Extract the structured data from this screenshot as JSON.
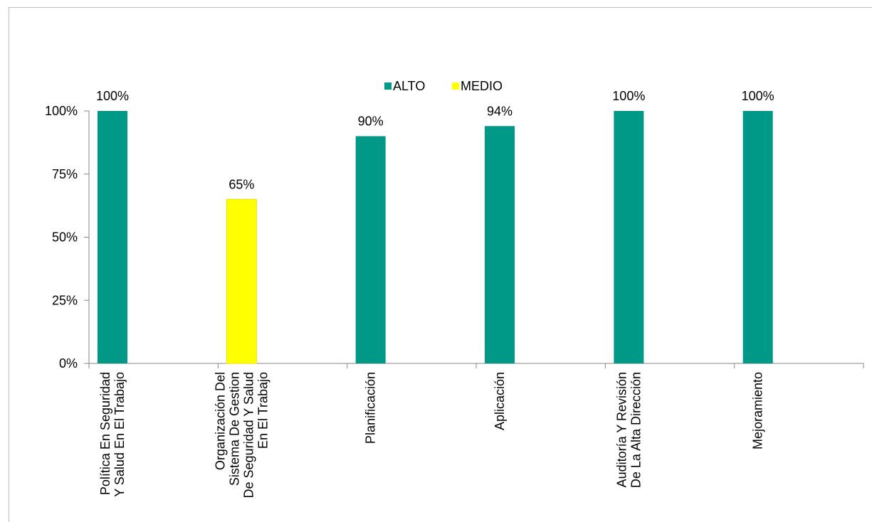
{
  "chart_data": {
    "type": "bar",
    "categories": [
      [
        "Política En Seguridad",
        "Y Salud En El Trabajo"
      ],
      [
        "Organización Del",
        "Sistema De Gestion",
        "De Seguridad Y Salud",
        "En El Trabajo"
      ],
      [
        "Planificación"
      ],
      [
        "Aplicación"
      ],
      [
        "Auditoría Y Revisión",
        "De La Alta Dirección"
      ],
      [
        "Mejoramiento"
      ]
    ],
    "values": [
      100,
      65,
      90,
      94,
      100,
      100
    ],
    "value_labels": [
      "100%",
      "65%",
      "90%",
      "94%",
      "100%",
      "100%"
    ],
    "series_of_point": [
      "ALTO",
      "MEDIO",
      "ALTO",
      "ALTO",
      "ALTO",
      "ALTO"
    ],
    "legend": [
      {
        "name": "ALTO",
        "color": "#009988"
      },
      {
        "name": "MEDIO",
        "color": "#ffff00"
      }
    ],
    "legend_position": "top",
    "ylim": [
      0,
      100
    ],
    "yticks": [
      0,
      25,
      50,
      75,
      100
    ],
    "ytick_labels": [
      "0%",
      "25%",
      "50%",
      "75%",
      "100%"
    ],
    "grid": false,
    "title": "",
    "xlabel": "",
    "ylabel": ""
  }
}
